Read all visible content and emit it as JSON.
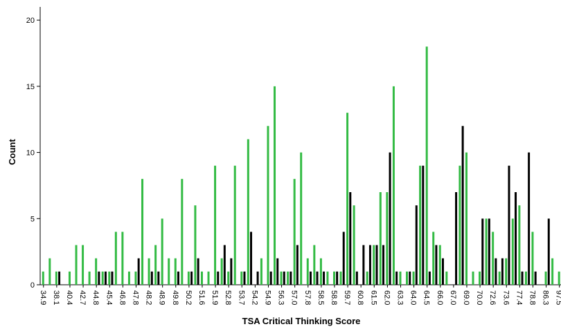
{
  "chart_data": {
    "type": "bar",
    "x_label": "TSA Critical Thinking Score",
    "y_label": "Count",
    "categories": [
      "34.9",
      null,
      "38.1",
      null,
      "40.4",
      null,
      "42.7",
      null,
      "44.8",
      null,
      "45.4",
      null,
      "46.8",
      null,
      "47.8",
      null,
      "48.2",
      null,
      "48.9",
      null,
      "49.8",
      null,
      "50.2",
      null,
      "51.6",
      null,
      "51.9",
      null,
      "52.8",
      null,
      "53.7",
      null,
      "54.2",
      null,
      "54.9",
      null,
      "56.3",
      null,
      "57.0",
      null,
      "57.8",
      null,
      "58.5",
      null,
      "58.8",
      null,
      "59.7",
      null,
      "60.8",
      null,
      "61.5",
      null,
      "62.0",
      null,
      "63.3",
      null,
      "64.0",
      null,
      "64.5",
      null,
      "66.0",
      null,
      "67.0",
      null,
      "69.0",
      null,
      "70.0",
      null,
      "72.6",
      null,
      "73.6",
      null,
      "77.4",
      null,
      "78.8",
      null,
      "86.3",
      null,
      "97.5"
    ],
    "series": [
      {
        "color": "#33bb44",
        "values": [
          1,
          2,
          1,
          0,
          1,
          3,
          3,
          1,
          2,
          1,
          1,
          4,
          4,
          1,
          1,
          8,
          2,
          3,
          5,
          2,
          2,
          8,
          1,
          6,
          1,
          1,
          9,
          2,
          1,
          9,
          1,
          11,
          0,
          2,
          12,
          15,
          1,
          1,
          8,
          10,
          2,
          3,
          2,
          1,
          1,
          1,
          13,
          6,
          0,
          1,
          3,
          7,
          7,
          15,
          1,
          1,
          1,
          9,
          18,
          4,
          3,
          1,
          0,
          9,
          10,
          1,
          1,
          5,
          4,
          1,
          2,
          5,
          6,
          1,
          4,
          0,
          1,
          2,
          1
        ]
      },
      {
        "color": "#000000",
        "values": [
          0,
          0,
          1,
          0,
          0,
          0,
          0,
          0,
          1,
          1,
          1,
          0,
          0,
          0,
          2,
          0,
          1,
          1,
          0,
          0,
          1,
          0,
          1,
          2,
          0,
          0,
          1,
          3,
          2,
          0,
          1,
          4,
          1,
          0,
          1,
          2,
          1,
          1,
          3,
          0,
          1,
          1,
          1,
          0,
          1,
          4,
          7,
          1,
          3,
          3,
          3,
          3,
          10,
          1,
          0,
          1,
          6,
          9,
          1,
          3,
          2,
          0,
          7,
          12,
          0,
          0,
          5,
          5,
          2,
          2,
          9,
          7,
          1,
          10,
          1,
          0,
          5,
          0,
          0
        ]
      }
    ],
    "ylim": [
      0,
      21
    ],
    "yticks": [
      0,
      5,
      10,
      15,
      20
    ]
  }
}
